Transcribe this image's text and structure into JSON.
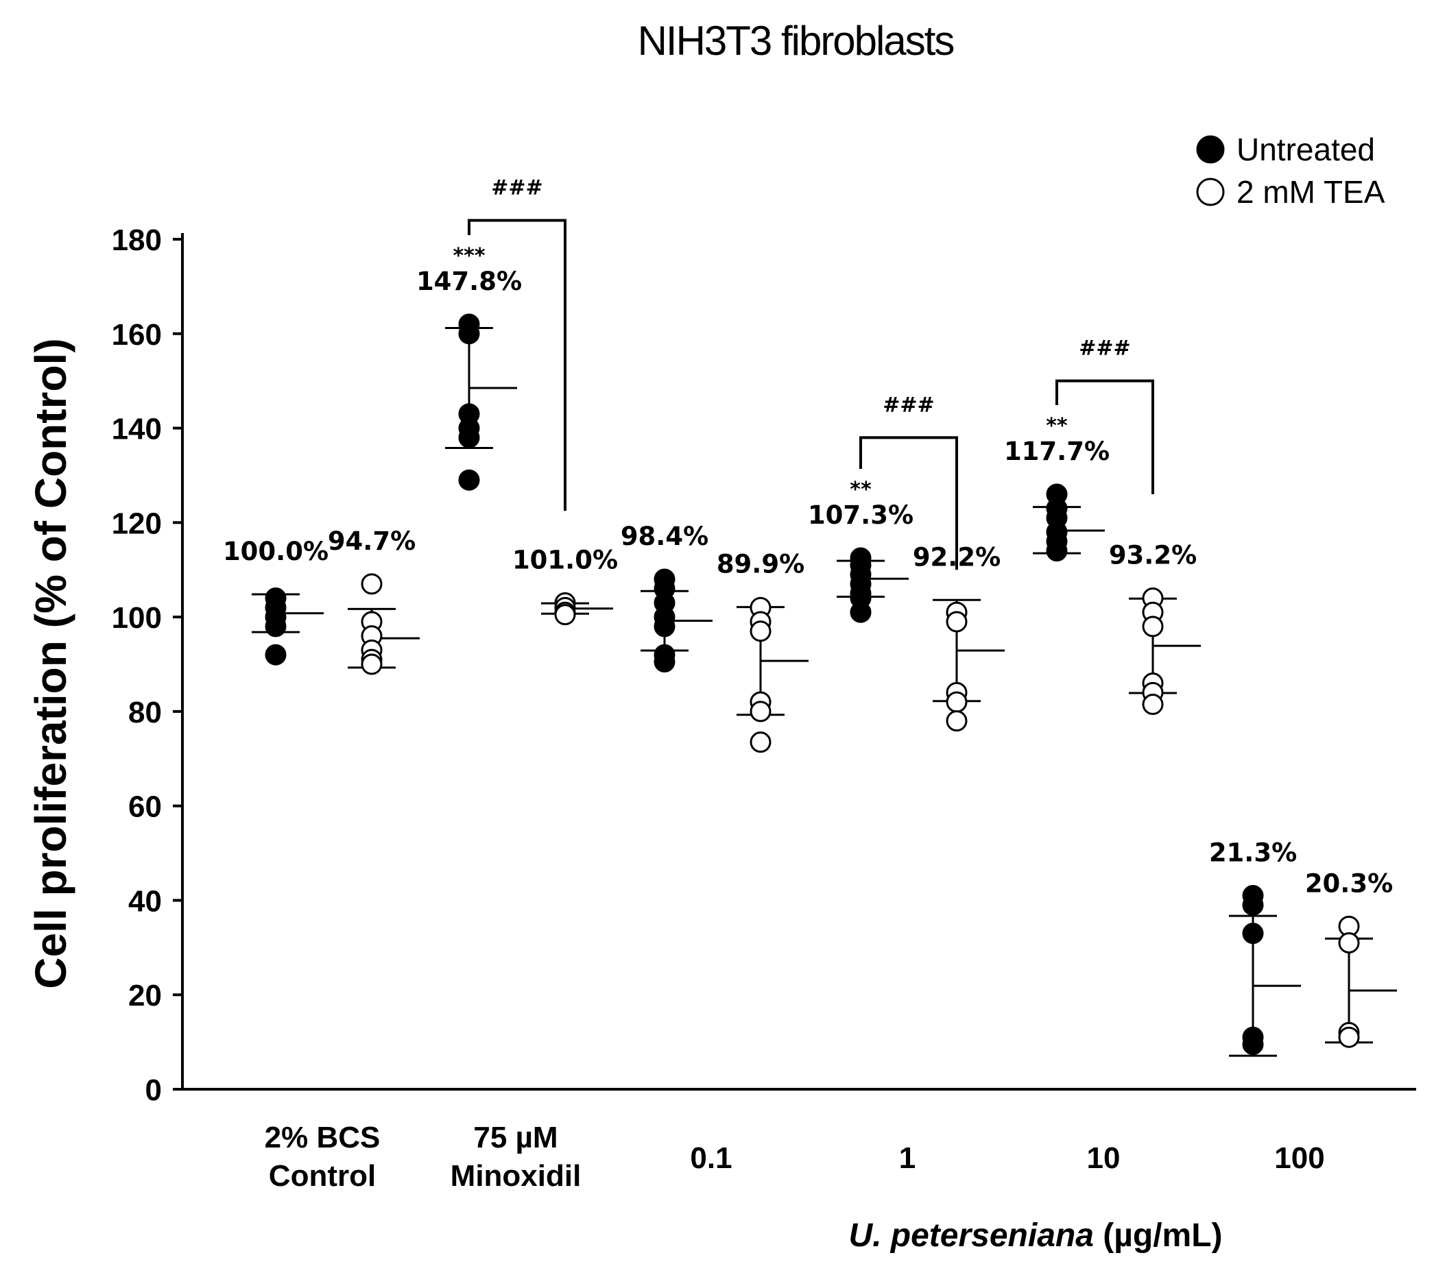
{
  "chart_data": {
    "type": "scatter",
    "title": "NIH3T3 fibroblasts",
    "xlabel_italic": "U. peterseniana",
    "xlabel_unit": " (µg/mL)",
    "ylabel": "Cell proliferation (% of Control)",
    "ylim": [
      0,
      180
    ],
    "yticks": [
      0,
      20,
      40,
      60,
      80,
      100,
      120,
      140,
      160,
      180
    ],
    "grid": false,
    "legend_position": "top-right",
    "categories": [
      {
        "line1": "2% BCS",
        "line2": "Control"
      },
      {
        "line1": "75 µM",
        "line2": "Minoxidil"
      },
      {
        "line1": "0.1",
        "line2": ""
      },
      {
        "line1": "1",
        "line2": ""
      },
      {
        "line1": "10",
        "line2": ""
      },
      {
        "line1": "100",
        "line2": ""
      }
    ],
    "series": [
      {
        "name": "Untreated",
        "marker": "filled-circle",
        "groups": [
          {
            "points": [
              104,
              102,
              100,
              98,
              92
            ],
            "mean": 100.8,
            "sd_low": 96.8,
            "sd_high": 104.8,
            "label": "100.0%",
            "sig": ""
          },
          {
            "points": [
              162,
              160,
              143,
              140,
              138,
              129
            ],
            "mean": 148.5,
            "sd_low": 135.8,
            "sd_high": 161.2,
            "label": "147.8%",
            "sig": "***"
          },
          {
            "points": [
              108,
              106,
              103,
              100,
              98,
              92,
              90.5
            ],
            "mean": 99.2,
            "sd_low": 92.9,
            "sd_high": 105.5,
            "label": "98.4%",
            "sig": ""
          },
          {
            "points": [
              112.5,
              111,
              109,
              107,
              105,
              104,
              101
            ],
            "mean": 108.1,
            "sd_low": 104.3,
            "sd_high": 111.9,
            "label": "107.3%",
            "sig": "**"
          },
          {
            "points": [
              126,
              123,
              121,
              118,
              116,
              114
            ],
            "mean": 118.3,
            "sd_low": 113.5,
            "sd_high": 123.3,
            "label": "117.7%",
            "sig": "**"
          },
          {
            "points": [
              41,
              39,
              33,
              11,
              9.5
            ],
            "mean": 21.9,
            "sd_low": 7.1,
            "sd_high": 36.7,
            "label": "21.3%",
            "sig": ""
          }
        ]
      },
      {
        "name": "2 mM TEA",
        "marker": "open-circle",
        "groups": [
          {
            "points": [
              107,
              99,
              96,
              93,
              91,
              90
            ],
            "mean": 95.5,
            "sd_low": 89.3,
            "sd_high": 101.7,
            "label": "94.7%",
            "sig": ""
          },
          {
            "points": [
              103,
              102,
              101,
              100.5
            ],
            "mean": 101.8,
            "sd_low": 100.7,
            "sd_high": 102.9,
            "label": "101.0%",
            "sig": ""
          },
          {
            "points": [
              102,
              99,
              97,
              82,
              80,
              73.5
            ],
            "mean": 90.7,
            "sd_low": 79.3,
            "sd_high": 102.1,
            "label": "89.9%",
            "sig": ""
          },
          {
            "points": [
              101,
              99,
              84,
              82,
              78
            ],
            "mean": 92.9,
            "sd_low": 82.2,
            "sd_high": 103.6,
            "label": "92.2%",
            "sig": ""
          },
          {
            "points": [
              104,
              101,
              98,
              86,
              84,
              81.5
            ],
            "mean": 93.9,
            "sd_low": 83.9,
            "sd_high": 103.9,
            "label": "93.2%",
            "sig": ""
          },
          {
            "points": [
              34.5,
              31,
              12,
              11
            ],
            "mean": 20.9,
            "sd_low": 9.9,
            "sd_high": 31.9,
            "label": "20.3%",
            "sig": ""
          }
        ]
      }
    ],
    "comparisons": [
      {
        "category": 1,
        "label": "###",
        "untreated_top": 184,
        "tea_bottom": 122.5
      },
      {
        "category": 3,
        "label": "###",
        "untreated_top": 138,
        "tea_bottom": 110
      },
      {
        "category": 4,
        "label": "###",
        "untreated_top": 150,
        "tea_bottom": 126
      }
    ]
  }
}
